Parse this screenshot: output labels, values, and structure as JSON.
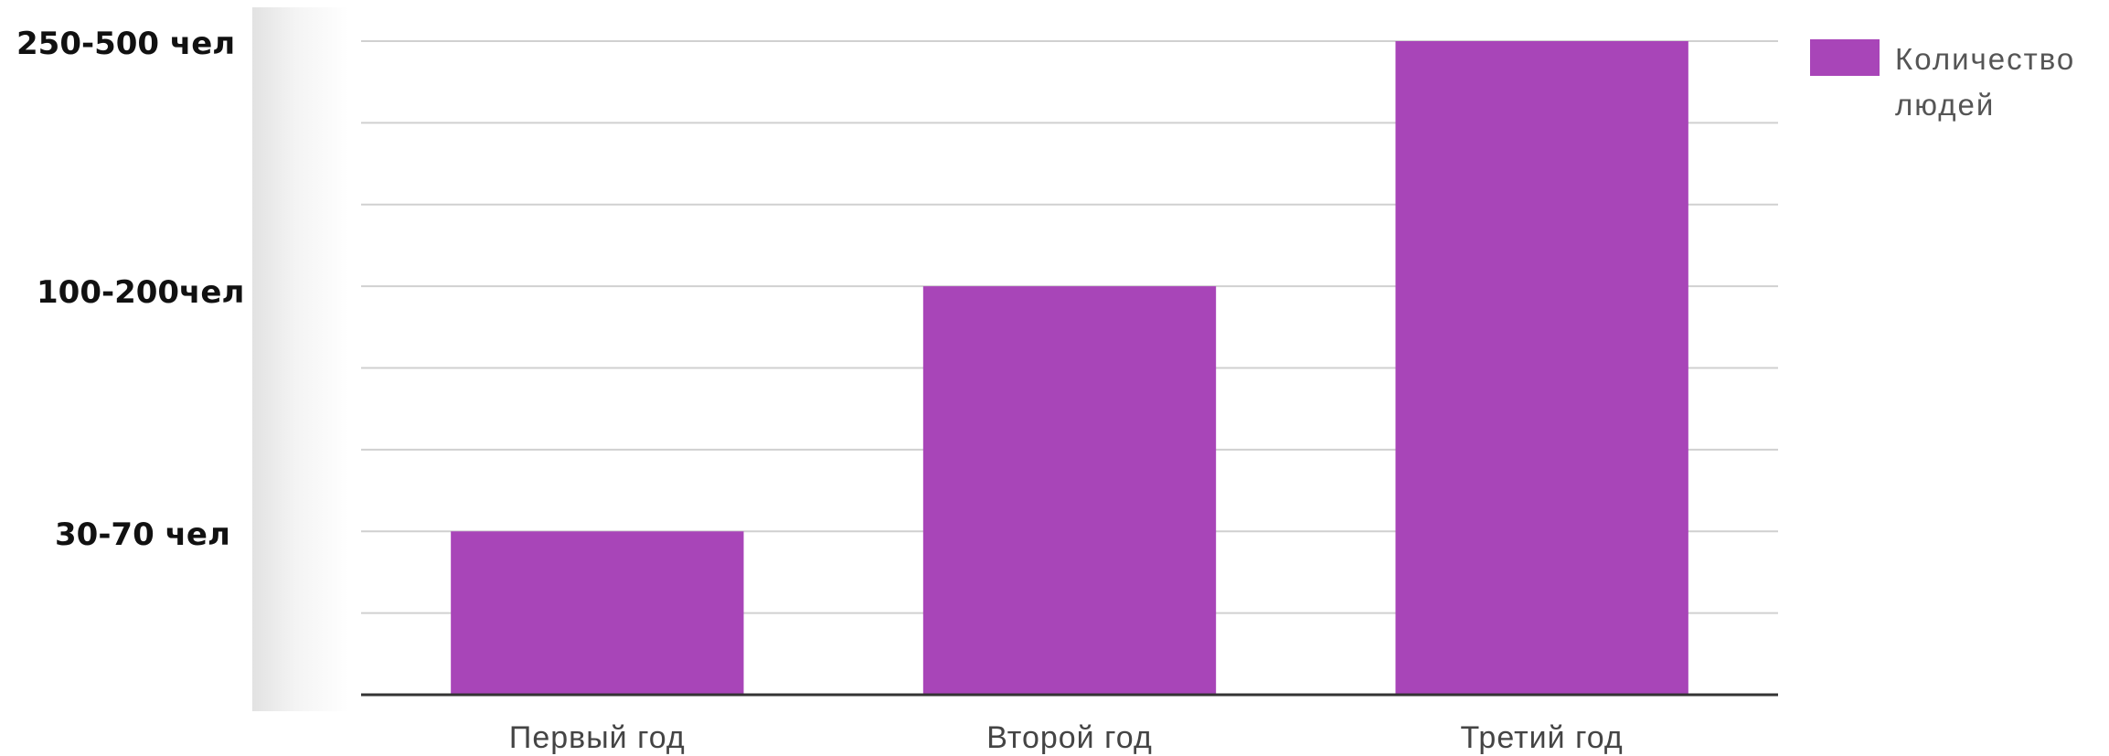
{
  "chart_data": {
    "type": "bar",
    "categories": [
      "Первый год",
      "Второй год",
      "Третий год"
    ],
    "values": [
      1,
      2.5,
      4
    ],
    "y_tick_labels": [
      {
        "value": 1,
        "label": "30-70 чел"
      },
      {
        "value": 2.5,
        "label": "100-200чел"
      },
      {
        "value": 4,
        "label": "250-500 чел"
      }
    ],
    "ylim": [
      0,
      4
    ],
    "grid": true,
    "gridline_count": 8,
    "bar_color": "#a845b8",
    "legend": {
      "position": "right",
      "label": "Количество людей"
    }
  }
}
